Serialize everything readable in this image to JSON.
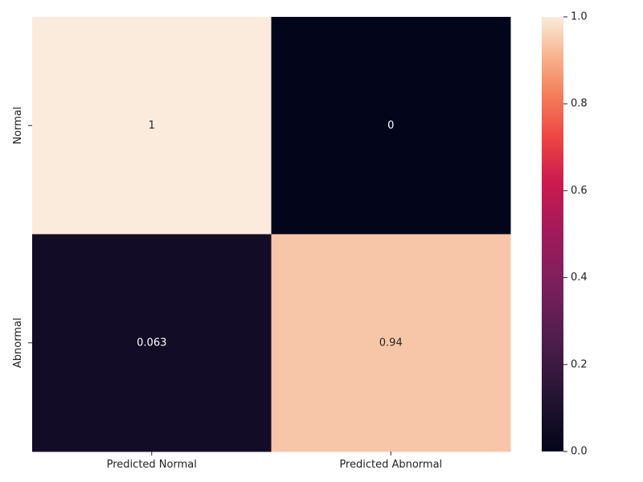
{
  "chart_data": {
    "type": "heatmap",
    "title": "",
    "xlabel": "",
    "ylabel": "",
    "x_categories": [
      "Predicted Normal",
      "Predicted Abnormal"
    ],
    "y_categories": [
      "Normal",
      "Abnormal"
    ],
    "values": [
      [
        1,
        0
      ],
      [
        0.063,
        0.94
      ]
    ],
    "annotations": [
      [
        "1",
        "0"
      ],
      [
        "0.063",
        "0.94"
      ]
    ],
    "colorbar": {
      "range": [
        0,
        1
      ],
      "ticks": [
        "0.0",
        "0.2",
        "0.4",
        "0.6",
        "0.8",
        "1.0"
      ],
      "tick_values": [
        0,
        0.2,
        0.4,
        0.6,
        0.8,
        1.0
      ],
      "colormap": "rocket"
    },
    "grid": false
  }
}
